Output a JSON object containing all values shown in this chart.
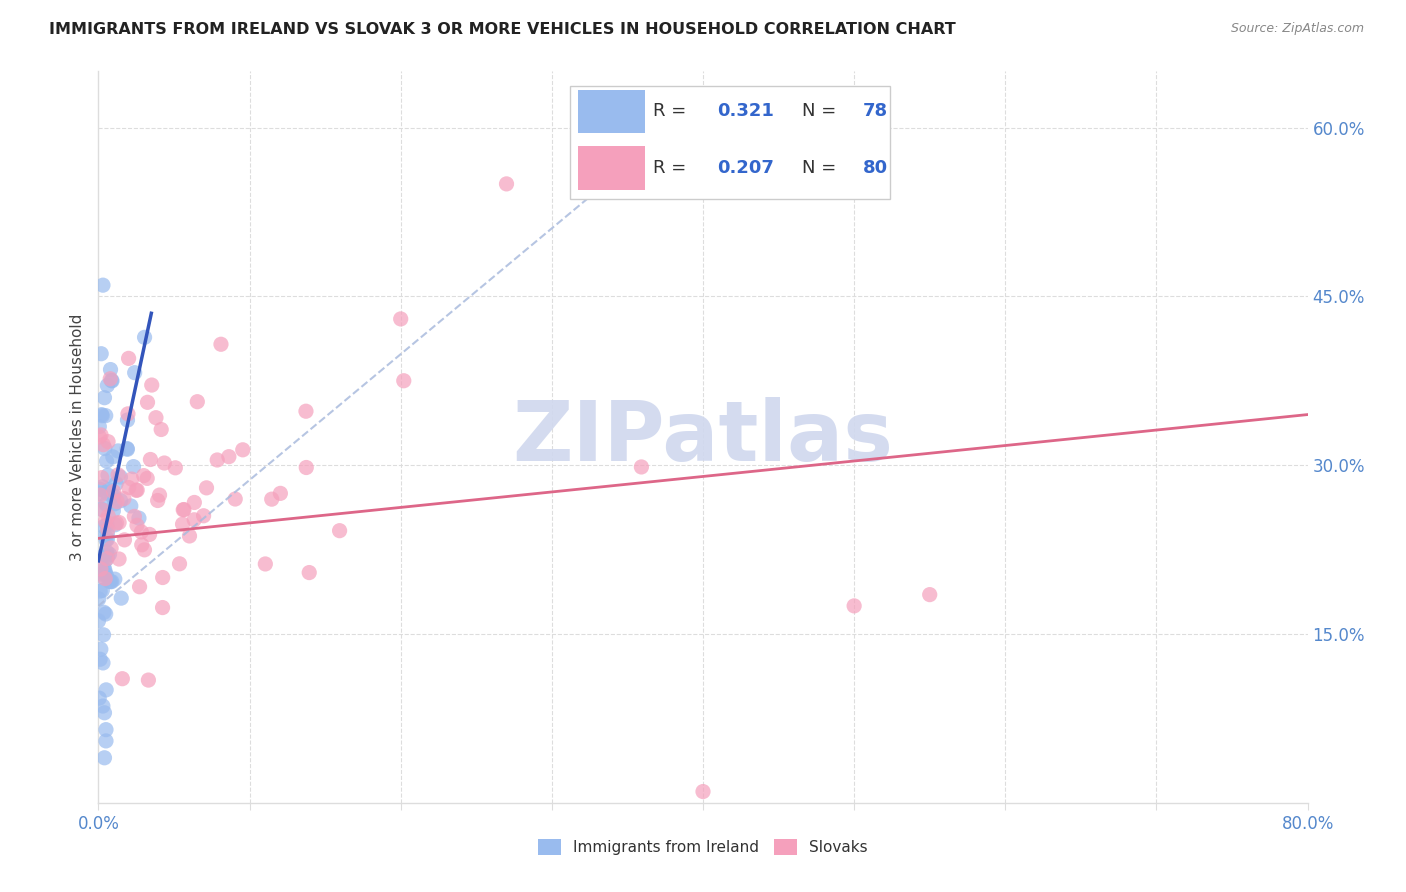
{
  "title": "IMMIGRANTS FROM IRELAND VS SLOVAK 3 OR MORE VEHICLES IN HOUSEHOLD CORRELATION CHART",
  "source": "Source: ZipAtlas.com",
  "ylabel": "3 or more Vehicles in Household",
  "ireland_R": 0.321,
  "ireland_N": 78,
  "slovak_R": 0.207,
  "slovak_N": 80,
  "ireland_color": "#99bbee",
  "irish_line_color": "#3355bb",
  "slovak_color": "#f5a0bc",
  "slovak_line_color": "#dd6688",
  "dashed_line_color": "#aabbdd",
  "watermark_color": "#d0d8ee",
  "background_color": "#ffffff",
  "grid_color": "#dddddd",
  "tick_color": "#5588cc",
  "title_color": "#222222",
  "ylabel_color": "#444444",
  "source_color": "#888888",
  "legend_text_color": "#333333",
  "legend_value_color": "#3366cc"
}
